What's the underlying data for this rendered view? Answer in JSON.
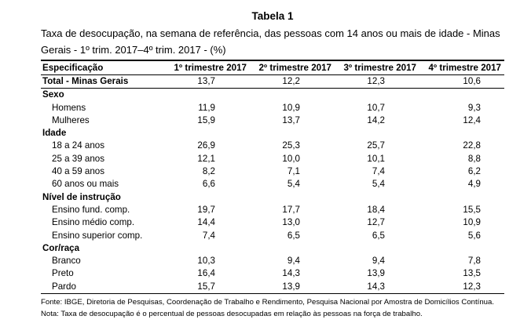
{
  "caption": "Tabela 1",
  "subtitle": "Taxa de desocupação, na semana de referência, das pessoas com 14 anos ou mais de idade - Minas Gerais - 1º trim. 2017–4º trim. 2017 - (%)",
  "headers": [
    "Especificação",
    "1º trimestre 2017",
    "2º trimestre 2017",
    "3º trimestre 2017",
    "4º trimestre 2017"
  ],
  "rows": [
    {
      "type": "total",
      "label": "Total - Minas Gerais",
      "values": [
        "13,7",
        "12,2",
        "12,3",
        "10,6"
      ]
    },
    {
      "type": "cat",
      "label": "Sexo",
      "values": [
        "",
        "",
        "",
        ""
      ]
    },
    {
      "type": "sub",
      "label": "Homens",
      "values": [
        "11,9",
        "10,9",
        "10,7",
        "9,3"
      ]
    },
    {
      "type": "sub",
      "label": "Mulheres",
      "values": [
        "15,9",
        "13,7",
        "14,2",
        "12,4"
      ]
    },
    {
      "type": "cat",
      "label": "Idade",
      "values": [
        "",
        "",
        "",
        ""
      ]
    },
    {
      "type": "sub",
      "label": "18 a 24 anos",
      "values": [
        "26,9",
        "25,3",
        "25,7",
        "22,8"
      ]
    },
    {
      "type": "sub",
      "label": "25 a 39 anos",
      "values": [
        "12,1",
        "10,0",
        "10,1",
        "8,8"
      ]
    },
    {
      "type": "sub",
      "label": "40 a 59 anos",
      "values": [
        "8,2",
        "7,1",
        "7,4",
        "6,2"
      ]
    },
    {
      "type": "sub",
      "label": "60 anos ou mais",
      "values": [
        "6,6",
        "5,4",
        "5,4",
        "4,9"
      ]
    },
    {
      "type": "cat",
      "label": "Nível de instrução",
      "values": [
        "",
        "",
        "",
        ""
      ]
    },
    {
      "type": "sub",
      "label": "Ensino fund. comp.",
      "values": [
        "19,7",
        "17,7",
        "18,4",
        "15,5"
      ]
    },
    {
      "type": "sub",
      "label": "Ensino médio comp.",
      "values": [
        "14,4",
        "13,0",
        "12,7",
        "10,9"
      ]
    },
    {
      "type": "sub",
      "label": "Ensino superior comp.",
      "values": [
        "7,4",
        "6,5",
        "6,5",
        "5,6"
      ]
    },
    {
      "type": "cat",
      "label": "Cor/raça",
      "values": [
        "",
        "",
        "",
        ""
      ]
    },
    {
      "type": "sub",
      "label": "Branco",
      "values": [
        "10,3",
        "9,4",
        "9,4",
        "7,8"
      ]
    },
    {
      "type": "sub",
      "label": "Preto",
      "values": [
        "16,4",
        "14,3",
        "13,9",
        "13,5"
      ]
    },
    {
      "type": "sub",
      "label": "Pardo",
      "values": [
        "15,7",
        "13,9",
        "14,3",
        "12,3"
      ]
    }
  ],
  "notes": [
    "Fonte: IBGE, Diretoria de Pesquisas, Coordenação de Trabalho e Rendimento, Pesquisa Nacional por Amostra de Domicílios Contínua.",
    "Nota: Taxa de desocupação é o percentual de pessoas desocupadas em relação às pessoas na força de trabalho."
  ]
}
